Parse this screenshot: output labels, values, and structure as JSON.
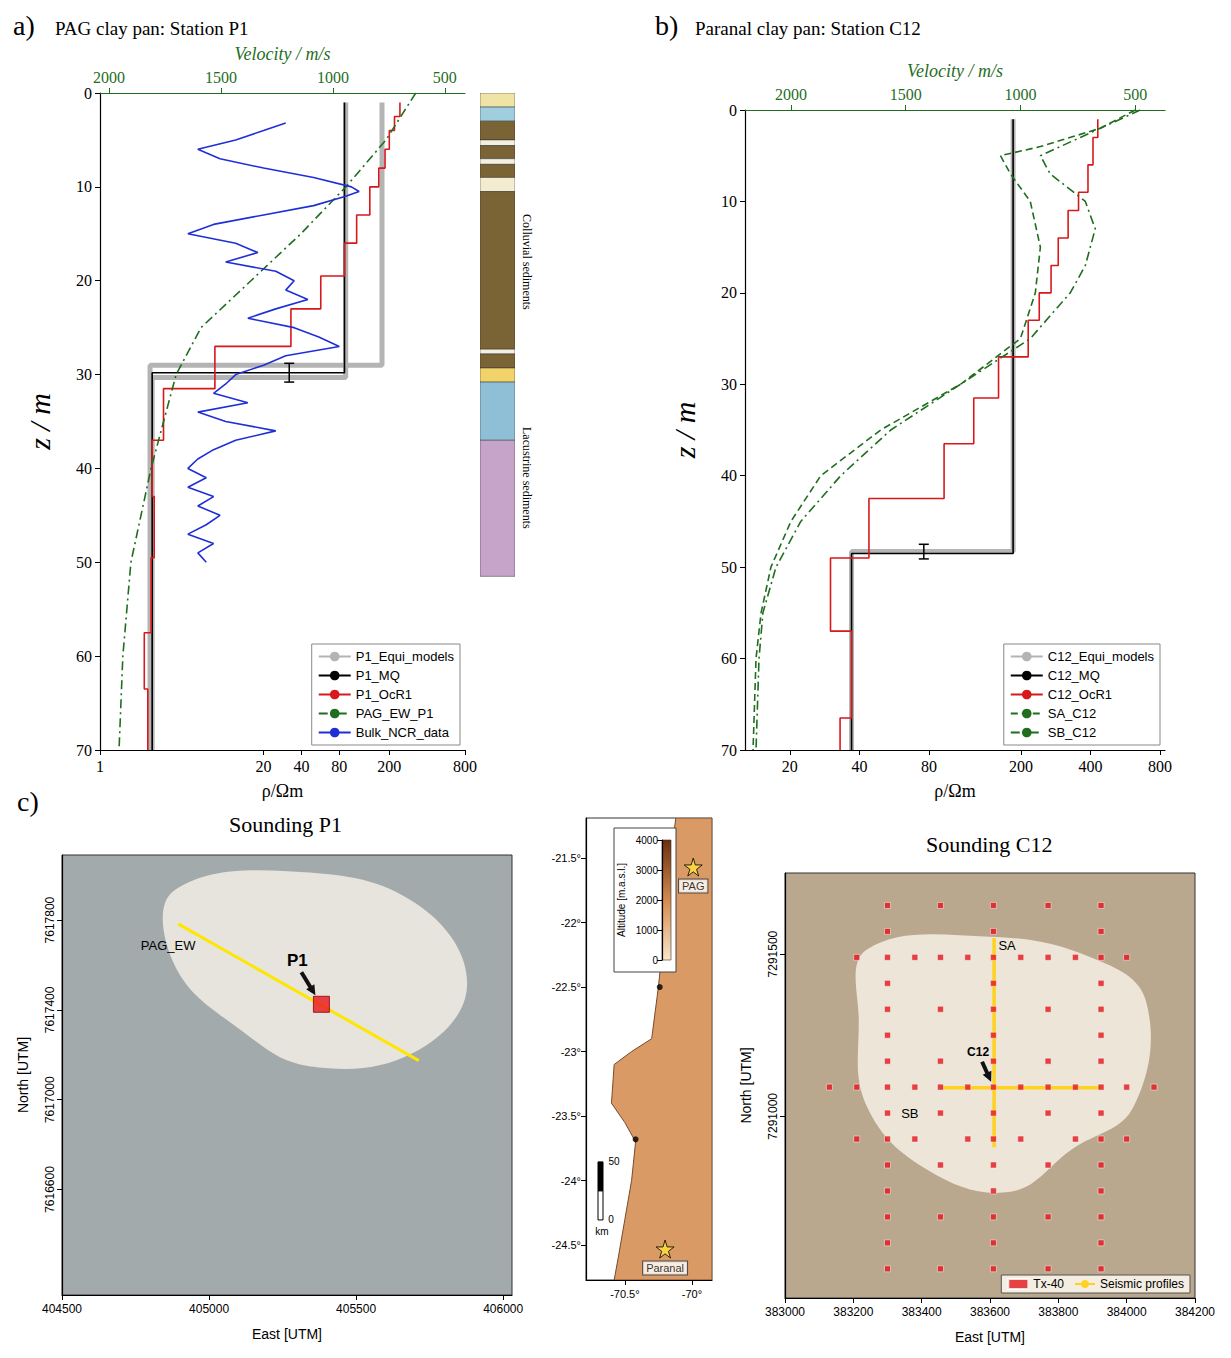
{
  "chart_data": [
    {
      "type": "line",
      "panel_label": "a)",
      "title": "PAG clay pan: Station P1",
      "x_label": "ρ/Ωm",
      "x2_label": "Velocity / m/s",
      "y_label": "z / m",
      "log": "x",
      "grid": false,
      "legend": "lower right",
      "xlim": [
        1,
        800
      ],
      "xticks": [
        1,
        20,
        40,
        80,
        200,
        800
      ],
      "x2lim": [
        2040,
        410
      ],
      "x2ticks": [
        2000,
        1500,
        1000,
        500
      ],
      "ylim": [
        0,
        70
      ],
      "yticks": [
        0,
        10,
        20,
        30,
        40,
        50,
        60,
        70
      ],
      "series": [
        {
          "name": "P1_Equi_models",
          "color": "#b4b4b4",
          "line_style": "band",
          "x": [
            175,
            175,
            2.5,
            2.5,
            null,
            90,
            90,
            2.6,
            2.6
          ],
          "y": [
            1,
            29,
            29,
            70,
            null,
            1,
            30.3,
            30.3,
            70
          ]
        },
        {
          "name": "P1_MQ",
          "color": "#000000",
          "line_style": "solid",
          "x": [
            88,
            88,
            2.6,
            2.6
          ],
          "y": [
            1,
            29.8,
            29.8,
            70
          ]
        },
        {
          "name": "P1_OcR1",
          "color": "#d7191c",
          "line_style": "solid",
          "x": [
            243,
            243,
            220,
            220,
            200,
            200,
            185,
            185,
            165,
            165,
            140,
            140,
            110,
            110,
            88,
            88,
            57,
            57,
            33,
            33,
            8.2,
            8.2,
            3.2,
            3.2,
            2.6,
            2.6,
            2.7,
            2.7,
            2.55,
            2.55,
            2.25,
            2.25,
            2.4,
            2.4
          ],
          "y": [
            1,
            2.5,
            2.5,
            4,
            4,
            6,
            6,
            8,
            8,
            10,
            10,
            13,
            13,
            16,
            16,
            19.5,
            19.5,
            23,
            23,
            27,
            27,
            31.5,
            31.5,
            37,
            37,
            43,
            43,
            49.5,
            49.5,
            57.5,
            57.5,
            63.5,
            63.5,
            70
          ]
        },
        {
          "name": "PAG_EW_P1",
          "color": "#1f6e1f",
          "line_style": "dashdot",
          "axis": "x2",
          "x": [
            630,
            763,
            942,
            1143,
            1366,
            1589,
            1700,
            1812,
            1902,
            1938,
            1955
          ],
          "y": [
            0,
            5,
            10,
            15,
            20,
            25,
            30,
            40,
            50,
            60,
            70
          ]
        },
        {
          "name": "Bulk_NCR_data",
          "color": "#1f2fd6",
          "line_style": "solid",
          "x": [
            30,
            20,
            12,
            6,
            9,
            20,
            50,
            100,
            115,
            90,
            50,
            20,
            8,
            5,
            12,
            18,
            10,
            25,
            35,
            30,
            45,
            25,
            15,
            35,
            55,
            80,
            30,
            20,
            12,
            10,
            8,
            15,
            6,
            10,
            25,
            12,
            8,
            6,
            5,
            7,
            5,
            8,
            6,
            9,
            7,
            5,
            8,
            6,
            7
          ],
          "y": [
            3.2,
            4,
            5,
            6,
            7,
            8,
            9,
            10,
            10.5,
            11,
            12,
            13,
            14,
            15,
            16,
            17,
            18,
            19,
            20,
            21,
            22,
            23,
            24,
            25,
            26,
            27,
            28,
            29,
            30,
            31,
            32,
            33,
            34,
            35,
            36,
            37,
            38,
            39,
            40,
            41,
            42,
            43,
            44,
            45,
            46,
            47,
            48,
            49,
            50
          ]
        }
      ],
      "error_bar": {
        "x": 32,
        "y": 29.8,
        "ymin": 28.8,
        "ymax": 30.8
      },
      "lithology": {
        "layers": [
          {
            "top": 0,
            "bottom": 1.5,
            "color": "#efe3a6"
          },
          {
            "top": 1.5,
            "bottom": 3,
            "color": "#9fcfdf"
          },
          {
            "top": 3,
            "bottom": 5,
            "color": "#7a6334"
          },
          {
            "top": 5,
            "bottom": 5.6,
            "color": "#f4f0e0"
          },
          {
            "top": 5.6,
            "bottom": 7,
            "color": "#7a6334"
          },
          {
            "top": 7,
            "bottom": 7.6,
            "color": "#f4f0e0"
          },
          {
            "top": 7.6,
            "bottom": 9,
            "color": "#7a6334"
          },
          {
            "top": 9,
            "bottom": 10.5,
            "color": "#f4ecd0"
          },
          {
            "top": 10.5,
            "bottom": 27.3,
            "color": "#7a6334"
          },
          {
            "top": 27.3,
            "bottom": 27.8,
            "color": "#f4f0e0"
          },
          {
            "top": 27.8,
            "bottom": 29.3,
            "color": "#7a6334"
          },
          {
            "top": 29.3,
            "bottom": 30.8,
            "color": "#f1d36a"
          },
          {
            "top": 30.8,
            "bottom": 37,
            "color": "#8fbfd6"
          },
          {
            "top": 37,
            "bottom": 51.5,
            "color": "#c6a3c8"
          }
        ],
        "labels": [
          {
            "text": "Colluvial sediments",
            "y": 18
          },
          {
            "text": "Lacustrine sediments",
            "y": 41
          }
        ]
      }
    },
    {
      "type": "line",
      "panel_label": "b)",
      "title": "Paranal clay pan: Station C12",
      "x_label": "ρ/Ωm",
      "x2_label": "Velocity / m/s",
      "y_label": "z / m",
      "log": "x",
      "grid": false,
      "legend": "lower right",
      "xlim": [
        12.8,
        840
      ],
      "xticks": [
        20,
        40,
        80,
        200,
        400,
        800
      ],
      "x2lim": [
        2200,
        370
      ],
      "x2ticks": [
        2000,
        1500,
        1000,
        500
      ],
      "ylim": [
        0,
        70
      ],
      "yticks": [
        0,
        10,
        20,
        30,
        40,
        50,
        60,
        70
      ],
      "series": [
        {
          "name": "C12_Equi_models",
          "color": "#b4b4b4",
          "line_style": "band",
          "x": [
            185,
            185,
            37,
            37
          ],
          "y": [
            1,
            48.3,
            48.3,
            70
          ]
        },
        {
          "name": "C12_MQ",
          "color": "#000000",
          "line_style": "solid",
          "x": [
            185,
            185,
            37,
            37
          ],
          "y": [
            1,
            48.5,
            48.5,
            70
          ]
        },
        {
          "name": "C12_OcR1",
          "color": "#d7191c",
          "line_style": "solid",
          "x": [
            430,
            430,
            410,
            410,
            390,
            390,
            355,
            355,
            320,
            320,
            290,
            290,
            270,
            270,
            240,
            240,
            215,
            215,
            160,
            160,
            125,
            125,
            93,
            93,
            44,
            44,
            30,
            30,
            37,
            37,
            33,
            33
          ],
          "y": [
            1,
            3,
            3,
            6,
            6,
            9,
            9,
            11,
            11,
            14,
            14,
            17,
            17,
            20,
            20,
            23,
            23,
            27,
            27,
            31.5,
            31.5,
            36.5,
            36.5,
            42.5,
            42.5,
            49,
            49,
            57,
            57,
            66.5,
            66.5,
            70
          ]
        },
        {
          "name": "SA_C12",
          "color": "#1f6e1f",
          "line_style": "dashed",
          "axis": "x2",
          "x": [
            500,
            652,
            913,
            1087,
            1043,
            957,
            913,
            935,
            1000,
            1261,
            1609,
            1870,
            2000,
            2087,
            2130,
            2152,
            2165
          ],
          "y": [
            0,
            2,
            4,
            5,
            7,
            10,
            15,
            20,
            25,
            30,
            35,
            40,
            45,
            50,
            55,
            60,
            70
          ]
        },
        {
          "name": "SB_C12",
          "color": "#1f6e1f",
          "line_style": "dashdot",
          "axis": "x2",
          "x": [
            478,
            739,
            913,
            870,
            717,
            674,
            717,
            783,
            957,
            1261,
            1565,
            1783,
            1957,
            2065,
            2122,
            2139,
            2152
          ],
          "y": [
            0,
            3,
            5,
            7,
            10,
            13,
            17,
            20,
            25,
            30,
            35,
            40,
            45,
            50,
            55,
            60,
            70
          ]
        }
      ],
      "error_bar": {
        "x": 76,
        "y": 48.3,
        "ymin": 47.5,
        "ymax": 49.1
      }
    },
    {
      "type": "scatter",
      "panel_label": "c)",
      "title": "Sounding P1",
      "x_label": "East [UTM]",
      "y_label": "North [UTM]",
      "grid": false,
      "xlim": [
        404500,
        406030
      ],
      "xticks": [
        404500,
        405000,
        405500,
        406000
      ],
      "ylim": [
        7616130,
        7618090
      ],
      "yticks": [
        7616600,
        7617000,
        7617400,
        7617800
      ],
      "series": [
        {
          "name": "PAG_EW",
          "type": "line",
          "color": "#ffe600",
          "x": [
            404895,
            405713
          ],
          "y": [
            7617783,
            7617174
          ]
        },
        {
          "name": "P1",
          "type": "scatter",
          "marker": "square",
          "color": "#e8141c",
          "x": [
            405382
          ],
          "y": [
            7617425
          ]
        }
      ]
    },
    {
      "type": "scatter",
      "grid": false,
      "xlim": [
        -70.79,
        -69.85
      ],
      "xticks": [
        {
          "value": -70.5,
          "label": "-70.5°"
        },
        {
          "value": -70,
          "label": "-70°"
        }
      ],
      "ylim": [
        -24.77,
        -21.19
      ],
      "yticks": [
        {
          "value": -24.5,
          "label": "-24.5°"
        },
        {
          "value": -24,
          "label": "-24°"
        },
        {
          "value": -23.5,
          "label": "-23.5°"
        },
        {
          "value": -23,
          "label": "-23°"
        },
        {
          "value": -22.5,
          "label": "-22.5°"
        },
        {
          "value": -22,
          "label": "-22°"
        },
        {
          "value": -21.5,
          "label": "-21.5°"
        }
      ],
      "coastline": {
        "color": "#d99a66",
        "x": [
          -70.12,
          -70.17,
          -70.2,
          -70.25,
          -70.3,
          -70.45,
          -70.58,
          -70.6,
          -70.5,
          -70.42,
          -70.45,
          -70.5,
          -70.55,
          -70.58
        ],
        "y": [
          -21.19,
          -21.6,
          -22.0,
          -22.5,
          -22.9,
          -23.0,
          -23.1,
          -23.4,
          -23.55,
          -23.7,
          -24.0,
          -24.3,
          -24.6,
          -24.77
        ]
      },
      "sites": [
        {
          "name": "PAG",
          "x": -69.99,
          "y": -21.57
        },
        {
          "name": "Paranal",
          "x": -70.2,
          "y": -24.53
        }
      ],
      "marker": "star",
      "color": "#ffe13a",
      "markers": {
        "x": [
          -70.24,
          -70.42
        ],
        "y": [
          -22.5,
          -23.68
        ],
        "color": "#000000"
      },
      "colorbar": {
        "label": "Altitude [m.a.s.l.]",
        "lim": [
          0,
          4000
        ],
        "ticks": [
          0,
          1000,
          2000,
          3000,
          4000
        ]
      },
      "scale_bar": {
        "ticks": [
          0,
          50
        ],
        "unit": "km"
      }
    },
    {
      "type": "scatter",
      "title": "Sounding C12",
      "x_label": "East [UTM]",
      "y_label": "North [UTM]",
      "grid": false,
      "legend": "lower right",
      "xlim": [
        383000,
        384200
      ],
      "xticks": [
        383000,
        383200,
        383400,
        383600,
        383800,
        384000,
        384200
      ],
      "ylim": [
        7290440,
        7291750
      ],
      "yticks": [
        7291000,
        7291500
      ],
      "series": [
        {
          "name": "Tx-40",
          "type": "scatter",
          "marker": "square",
          "color": "#e3161b",
          "x": [
            383300,
            383300,
            383300,
            383300,
            383300,
            383300,
            383300,
            383300,
            383300,
            383300,
            383300,
            383300,
            383300,
            383300,
            383300,
            383455,
            383455,
            383455,
            383455,
            383455,
            383455,
            383455,
            383455,
            383455,
            383610,
            383610,
            383610,
            383610,
            383610,
            383610,
            383610,
            383610,
            383610,
            383610,
            383610,
            383610,
            383610,
            383610,
            383610,
            383770,
            383770,
            383770,
            383770,
            383770,
            383770,
            383770,
            383770,
            383770,
            383925,
            383925,
            383925,
            383925,
            383925,
            383925,
            383925,
            383925,
            383925,
            383925,
            383925,
            383925,
            383925,
            383925,
            383925,
            383210,
            383380,
            383535,
            383690,
            383850,
            384000,
            383130,
            383210,
            383380,
            383535,
            383690,
            383850,
            384000,
            384080,
            383210,
            383380,
            383535,
            383690,
            383850,
            384000
          ],
          "y": [
            7291650,
            7291570,
            7291490,
            7291410,
            7291330,
            7291250,
            7291170,
            7291090,
            7291010,
            7290930,
            7290850,
            7290770,
            7290690,
            7290610,
            7290530,
            7291650,
            7291490,
            7291330,
            7291170,
            7291090,
            7291010,
            7290850,
            7290690,
            7290530,
            7291650,
            7291570,
            7291490,
            7291410,
            7291330,
            7291250,
            7291170,
            7291090,
            7291010,
            7290930,
            7290850,
            7290770,
            7290690,
            7290610,
            7290530,
            7291650,
            7291490,
            7291330,
            7291170,
            7291090,
            7291010,
            7290850,
            7290690,
            7290530,
            7291650,
            7291570,
            7291490,
            7291410,
            7291330,
            7291250,
            7291170,
            7291090,
            7291010,
            7290930,
            7290850,
            7290770,
            7290690,
            7290610,
            7290530,
            7291490,
            7291490,
            7291490,
            7291490,
            7291490,
            7291490,
            7291090,
            7291090,
            7291090,
            7291090,
            7291090,
            7291090,
            7291090,
            7291090,
            7290930,
            7290930,
            7290930,
            7290930,
            7290930,
            7290930
          ]
        },
        {
          "name": "Seismic profiles",
          "type": "line",
          "color": "#ffd21f",
          "profiles": [
            {
              "name": "SA",
              "x": [
                383612,
                383612
              ],
              "y": [
                7291550,
                7290905
              ]
            },
            {
              "name": "SB",
              "x": [
                383456,
                383926
              ],
              "y": [
                7291088,
                7291088
              ]
            }
          ]
        }
      ],
      "stations": [
        {
          "name": "C12",
          "x": 383612,
          "y": 7291088
        }
      ]
    }
  ]
}
